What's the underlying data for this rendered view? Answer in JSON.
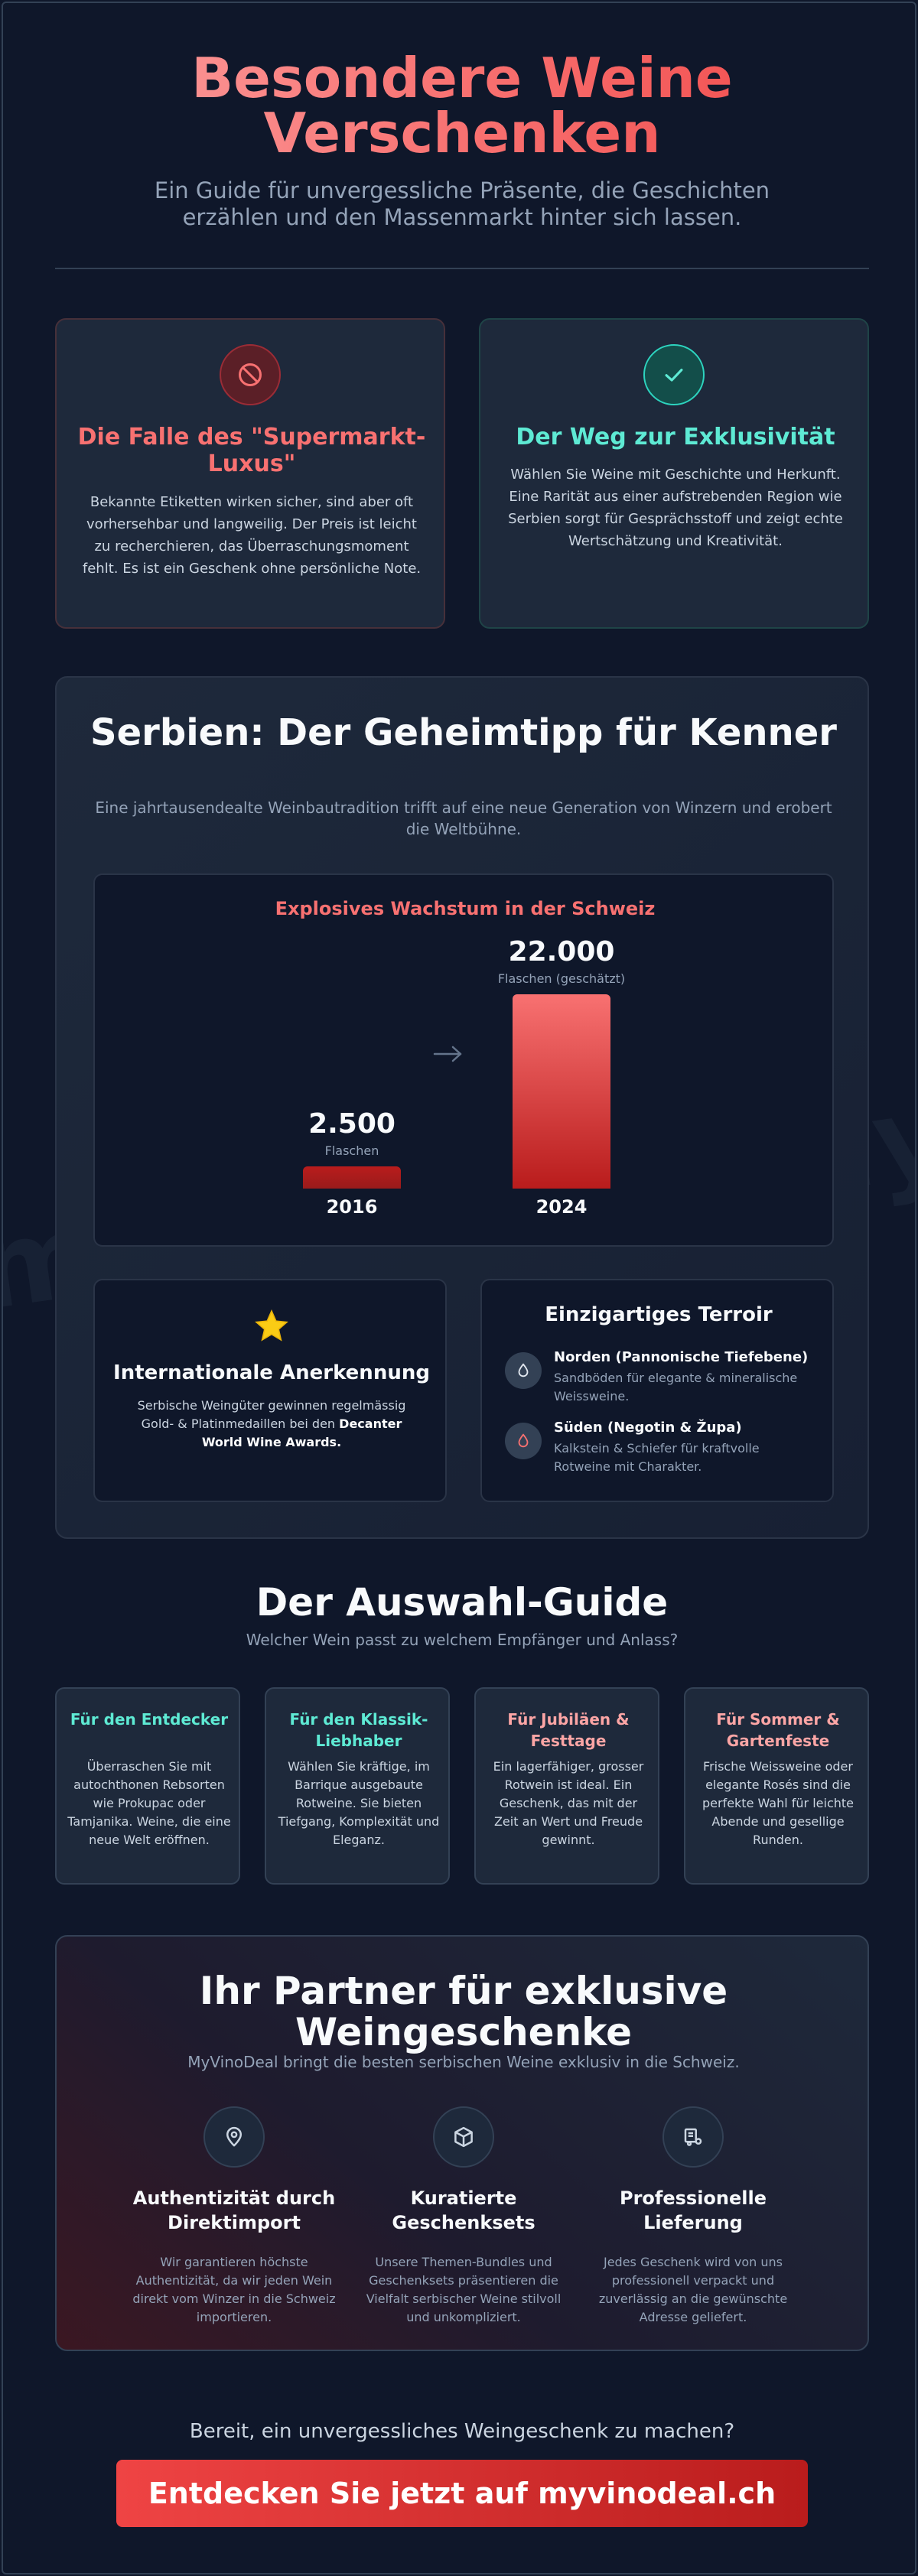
{
  "hero": {
    "title_line1": "Besondere Weine",
    "title_line2": "Verschenken",
    "subtitle": "Ein Guide für unvergessliche Präsente, die Geschichten erzählen und den Massenmarkt hinter sich lassen."
  },
  "trap": {
    "icon": "ban-icon",
    "title": "Die Falle des \"Supermarkt-Luxus\"",
    "text": "Bekannte Etiketten wirken sicher, sind aber oft vorhersehbar und langweilig. Der Preis ist leicht zu recherchieren, das Überraschungsmoment fehlt. Es ist ein Geschenk ohne persönliche Note."
  },
  "way": {
    "icon": "check-icon",
    "title": "Der Weg zur Exklusivität",
    "text": "Wählen Sie Weine mit Geschichte und Herkunft. Eine Rarität aus einer aufstrebenden Region wie Serbien sorgt für Gesprächsstoff und zeigt echte Wertschätzung und Kreativität."
  },
  "serbia": {
    "title": "Serbien: Der Geheimtipp für Kenner",
    "subtitle": "Eine jahrtausendealte Weinbautradition trifft auf eine neue Generation von Winzern und erobert die Weltbühne."
  },
  "chart_data": {
    "type": "bar",
    "title": "Explosives Wachstum in der Schweiz",
    "categories": [
      "2016",
      "2024"
    ],
    "values": [
      2500,
      22000
    ],
    "value_labels": [
      "2.500",
      "22.000"
    ],
    "captions": [
      "Flaschen",
      "Flaschen (geschätzt)"
    ],
    "colors": [
      "#b91c1c",
      "#f87171"
    ]
  },
  "award": {
    "icon": "star-icon",
    "title": "Internationale Anerkennung",
    "text_pre": "Serbische Weingüter gewinnen regelmässig Gold- & Platinmedaillen bei den ",
    "text_bold": "Decanter World Wine Awards."
  },
  "terroir": {
    "title": "Einzigartiges Terroir",
    "rows": [
      {
        "icon": "drop-icon",
        "head": "Norden (Pannonische Tiefebene)",
        "desc": "Sandböden für elegante & mineralische Weissweine."
      },
      {
        "icon": "drop-icon",
        "head": "Süden (Negotin & Župa)",
        "desc": "Kalkstein & Schiefer für kraftvolle Rotweine mit Charakter."
      }
    ]
  },
  "guide": {
    "title": "Der Auswahl-Guide",
    "subtitle": "Welcher Wein passt zu welchem Empfänger und Anlass?",
    "cards": [
      {
        "title": "Für den Entdecker",
        "text": "Überraschen Sie mit autochthonen Rebsorten wie Prokupac oder Tamjanika. Weine, die eine neue Welt eröffnen.",
        "color": "#5eead4"
      },
      {
        "title": "Für den Klassik-Liebhaber",
        "text": "Wählen Sie kräftige, im Barrique ausgebaute Rotweine. Sie bieten Tiefgang, Komplexität und Eleganz.",
        "color": "#5eead4"
      },
      {
        "title": "Für Jubiläen & Festtage",
        "text": "Ein lagerfähiger, grosser Rotwein ist ideal. Ein Geschenk, das mit der Zeit an Wert und Freude gewinnt.",
        "color": "#fca5a5"
      },
      {
        "title": "Für Sommer & Gartenfeste",
        "text": "Frische Weissweine oder elegante Rosés sind die perfekte Wahl für leichte Abende und gesellige Runden.",
        "color": "#fca5a5"
      }
    ]
  },
  "partner": {
    "title": "Ihr Partner für exklusive Weingeschenke",
    "subtitle": "MyVinoDeal bringt die besten serbischen Weine exklusiv in die Schweiz.",
    "features": [
      {
        "icon": "location-pin-icon",
        "title": "Authentizität durch Direktimport",
        "text": "Wir garantieren höchste Authentizität, da wir jeden Wein direkt vom Winzer in die Schweiz importieren."
      },
      {
        "icon": "box-icon",
        "title": "Kuratierte Geschenksets",
        "text": "Unsere Themen-Bundles und Geschenksets präsentieren die Vielfalt serbischer Weine stilvoll und unkompliziert."
      },
      {
        "icon": "delivery-truck-icon",
        "title": "Professionelle Lieferung",
        "text": "Jedes Geschenk wird von uns professionell verpackt und zuverlässig an die gewünschte Adresse geliefert."
      }
    ]
  },
  "cta": {
    "question": "Bereit, ein unvergessliches Weingeschenk zu machen?",
    "button": "Entdecken Sie jetzt auf myvinodeal.ch"
  }
}
